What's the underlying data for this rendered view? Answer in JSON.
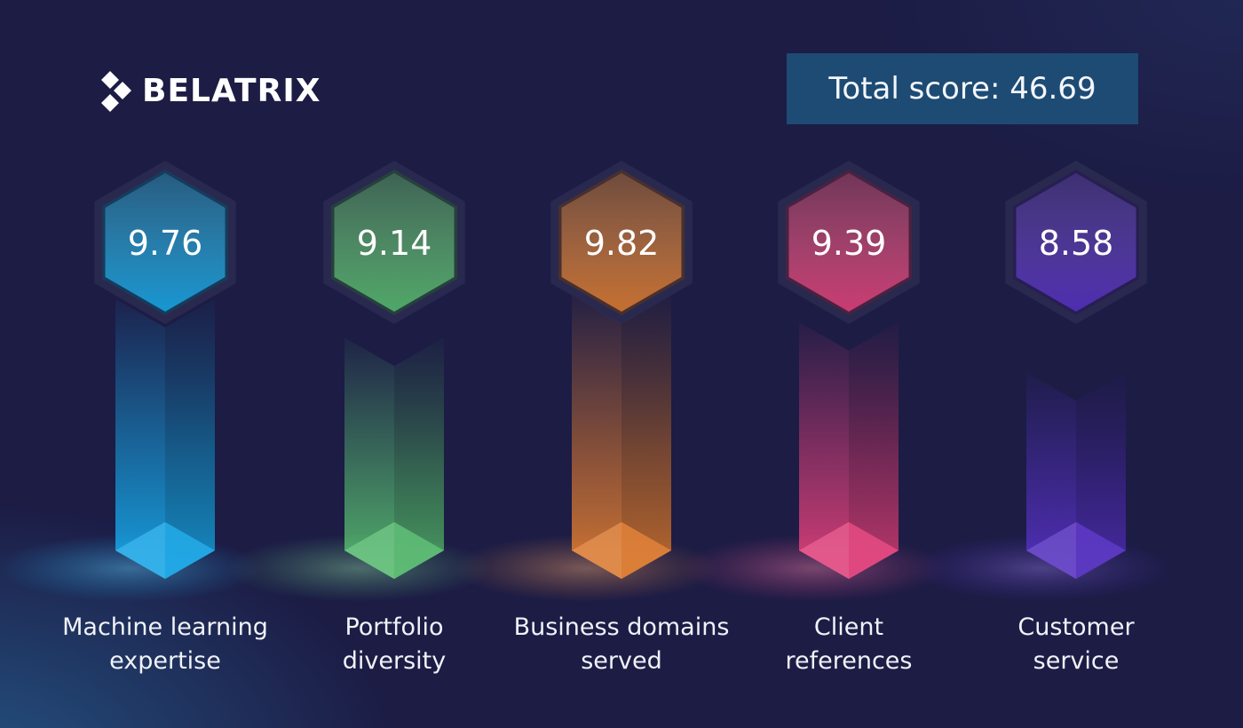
{
  "brand": {
    "name": "BELATRIX",
    "logo_icon": "belatrix-diamond-logo"
  },
  "total": {
    "label": "Total score: 46.69"
  },
  "chart_data": {
    "type": "bar",
    "title": "",
    "categories": [
      "Machine learning expertise",
      "Portfolio diversity",
      "Business domains served",
      "Client references",
      "Customer service"
    ],
    "category_lines": [
      [
        "Machine learning",
        "expertise"
      ],
      [
        "Portfolio",
        "diversity"
      ],
      [
        "Business domains",
        "served"
      ],
      [
        "Client",
        "references"
      ],
      [
        "Customer",
        "service"
      ]
    ],
    "values": [
      9.76,
      9.14,
      9.82,
      9.39,
      8.58
    ],
    "value_labels": [
      "9.76",
      "9.14",
      "9.82",
      "9.39",
      "8.58"
    ],
    "colors": [
      "#16a6e6",
      "#56b96e",
      "#dc7a30",
      "#e0407a",
      "#5430c0"
    ],
    "total": 46.69
  }
}
